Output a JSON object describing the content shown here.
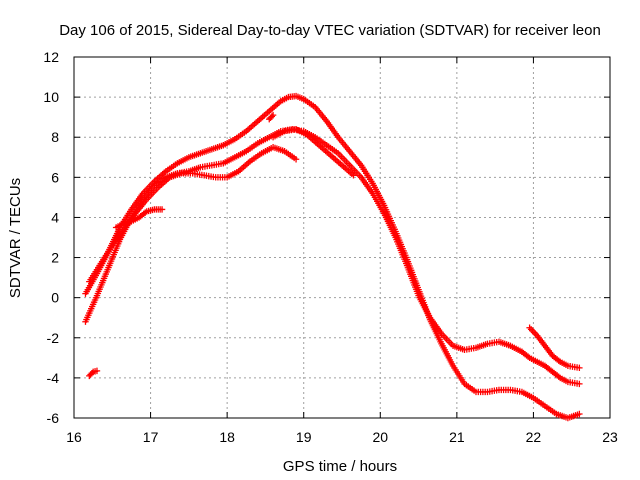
{
  "chart_data": {
    "type": "scatter",
    "title": "Day 106 of 2015, Sidereal Day-to-day VTEC variation (SDTVAR) for receiver leon",
    "xlabel": "GPS time / hours",
    "ylabel": "SDTVAR / TECUs",
    "xlim": [
      16,
      23
    ],
    "ylim": [
      -6,
      12
    ],
    "xticks": [
      16,
      17,
      18,
      19,
      20,
      21,
      22,
      23
    ],
    "yticks": [
      -6,
      -4,
      -2,
      0,
      2,
      4,
      6,
      8,
      10,
      12
    ],
    "grid": true,
    "marker": "plus",
    "color": "#ff0000",
    "series": [
      {
        "name": "s1",
        "x": [
          16.15,
          16.3,
          16.45,
          16.6,
          16.75,
          16.9,
          17.05,
          17.2,
          17.35,
          17.5,
          17.65,
          17.8,
          17.95,
          18.1,
          18.25,
          18.4,
          18.55,
          18.7,
          18.8,
          18.9,
          19.0,
          19.15,
          19.3,
          19.45,
          19.6,
          19.75,
          19.9,
          20.05,
          20.2,
          20.35,
          20.5,
          20.65,
          20.8,
          20.95,
          21.1,
          21.25,
          21.4,
          21.55,
          21.7,
          21.85,
          22.0,
          22.15,
          22.3,
          22.45,
          22.6
        ],
        "y": [
          0.2,
          1.2,
          2.3,
          3.5,
          4.4,
          5.2,
          5.8,
          6.3,
          6.7,
          7.0,
          7.2,
          7.4,
          7.6,
          7.9,
          8.3,
          8.8,
          9.3,
          9.8,
          10.0,
          10.05,
          9.9,
          9.5,
          8.8,
          8.0,
          7.3,
          6.6,
          5.7,
          4.6,
          3.3,
          1.9,
          0.4,
          -1.1,
          -2.3,
          -3.4,
          -4.3,
          -4.7,
          -4.7,
          -4.6,
          -4.6,
          -4.7,
          -5.0,
          -5.4,
          -5.8,
          -6.0,
          -5.8
        ]
      },
      {
        "name": "s2",
        "x": [
          16.15,
          16.3,
          16.45,
          16.6,
          16.75,
          16.9,
          17.05,
          17.2,
          17.35,
          17.5,
          17.65,
          17.8,
          17.95,
          18.1,
          18.25,
          18.4,
          18.55,
          18.7,
          18.85,
          19.0,
          19.15,
          19.3,
          19.45,
          19.6,
          19.75,
          19.9,
          20.05,
          20.2,
          20.35,
          20.5,
          20.65,
          20.8,
          20.95,
          21.1,
          21.25,
          21.4,
          21.55,
          21.7,
          21.85
        ],
        "y": [
          -1.2,
          0.1,
          1.5,
          2.9,
          4.0,
          4.9,
          5.6,
          6.0,
          6.2,
          6.3,
          6.5,
          6.6,
          6.7,
          7.0,
          7.3,
          7.7,
          8.0,
          8.3,
          8.4,
          8.3,
          8.0,
          7.6,
          7.2,
          6.6,
          6.0,
          5.2,
          4.2,
          3.0,
          1.6,
          0.1,
          -1.0,
          -1.8,
          -2.4,
          -2.6,
          -2.5,
          -2.3,
          -2.2,
          -2.4,
          -2.7
        ]
      },
      {
        "name": "s3",
        "x": [
          16.2,
          16.35,
          16.5,
          16.65,
          16.8,
          16.95,
          17.1,
          17.25,
          17.4,
          17.55,
          17.7,
          17.85,
          18.0,
          18.15,
          18.3,
          18.45,
          18.6,
          18.75,
          18.9
        ],
        "y": [
          0.8,
          1.7,
          2.6,
          3.4,
          4.2,
          4.9,
          5.5,
          6.0,
          6.2,
          6.2,
          6.1,
          6.0,
          6.0,
          6.3,
          6.8,
          7.2,
          7.5,
          7.3,
          6.9
        ]
      },
      {
        "name": "s4",
        "x": [
          16.55,
          16.65,
          16.75,
          16.85,
          16.95,
          17.05,
          17.15
        ],
        "y": [
          3.5,
          3.7,
          3.8,
          4.0,
          4.3,
          4.4,
          4.4
        ]
      },
      {
        "name": "s5",
        "x": [
          16.2,
          16.25,
          16.3
        ],
        "y": [
          -3.9,
          -3.7,
          -3.65
        ]
      },
      {
        "name": "s6",
        "x": [
          18.6,
          18.75,
          18.9,
          19.05,
          19.2,
          19.35,
          19.5,
          19.65
        ],
        "y": [
          8.0,
          8.3,
          8.4,
          8.1,
          7.6,
          7.1,
          6.6,
          6.1
        ]
      },
      {
        "name": "s7",
        "x": [
          21.95,
          22.05,
          22.15,
          22.25,
          22.35,
          22.45,
          22.6
        ],
        "y": [
          -1.5,
          -1.9,
          -2.4,
          -2.9,
          -3.2,
          -3.4,
          -3.5
        ]
      },
      {
        "name": "s8",
        "x": [
          21.85,
          21.95,
          22.05,
          22.15,
          22.25,
          22.35,
          22.45,
          22.6
        ],
        "y": [
          -2.7,
          -3.0,
          -3.2,
          -3.4,
          -3.7,
          -4.0,
          -4.2,
          -4.3
        ]
      },
      {
        "name": "s9",
        "x": [
          18.55,
          18.6
        ],
        "y": [
          8.9,
          9.1
        ]
      }
    ]
  }
}
